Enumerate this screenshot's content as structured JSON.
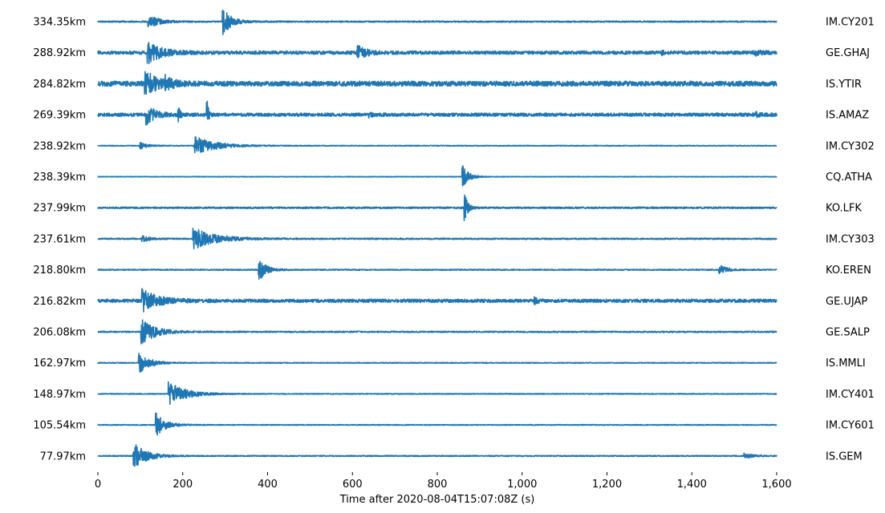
{
  "chart_data": {
    "type": "line",
    "title": "",
    "xlabel": "Time after 2020-08-04T15:07:08Z (s)",
    "ylabel": "",
    "xlim": [
      0,
      1600
    ],
    "x_ticks": [
      0,
      200,
      400,
      600,
      800,
      1000,
      1200,
      1400,
      1600
    ],
    "x_tick_labels": [
      "0",
      "200",
      "400",
      "600",
      "800",
      "1,000",
      "1,200",
      "1,400",
      "1,600"
    ],
    "grid": false,
    "line_color": "#1f77b4",
    "traces": [
      {
        "station": "IM.CY201",
        "distance": "334.35km",
        "noise": 0.05,
        "events": [
          {
            "t": 120,
            "amp": 0.55,
            "dur": 60
          },
          {
            "t": 295,
            "amp": 0.95,
            "dur": 55
          }
        ]
      },
      {
        "station": "GE.GHAJ",
        "distance": "288.92km",
        "noise": 0.12,
        "events": [
          {
            "t": 118,
            "amp": 0.75,
            "dur": 90
          },
          {
            "t": 612,
            "amp": 0.45,
            "dur": 60
          },
          {
            "t": 1330,
            "amp": 0.3,
            "dur": 6
          },
          {
            "t": 1545,
            "amp": 0.2,
            "dur": 50
          }
        ]
      },
      {
        "station": "IS.YTIR",
        "distance": "284.82km",
        "noise": 0.18,
        "events": [
          {
            "t": 112,
            "amp": 0.9,
            "dur": 80
          },
          {
            "t": 160,
            "amp": 0.35,
            "dur": 40
          }
        ]
      },
      {
        "station": "IS.AMAZ",
        "distance": "269.39km",
        "noise": 0.12,
        "events": [
          {
            "t": 115,
            "amp": 0.65,
            "dur": 60
          },
          {
            "t": 190,
            "amp": 0.6,
            "dur": 10
          },
          {
            "t": 258,
            "amp": 0.9,
            "dur": 10
          },
          {
            "t": 640,
            "amp": 0.15,
            "dur": 30
          },
          {
            "t": 1545,
            "amp": 0.2,
            "dur": 40
          }
        ]
      },
      {
        "station": "IM.CY302",
        "distance": "238.92km",
        "noise": 0.03,
        "events": [
          {
            "t": 100,
            "amp": 0.25,
            "dur": 40
          },
          {
            "t": 228,
            "amp": 0.7,
            "dur": 130
          }
        ]
      },
      {
        "station": "CQ.ATHA",
        "distance": "238.39km",
        "noise": 0.02,
        "events": [
          {
            "t": 860,
            "amp": 0.9,
            "dur": 40
          }
        ]
      },
      {
        "station": "KO.LFK",
        "distance": "237.99km",
        "noise": 0.06,
        "events": [
          {
            "t": 865,
            "amp": 1.0,
            "dur": 20
          }
        ]
      },
      {
        "station": "IM.CY303",
        "distance": "237.61km",
        "noise": 0.05,
        "events": [
          {
            "t": 105,
            "amp": 0.25,
            "dur": 40
          },
          {
            "t": 225,
            "amp": 0.8,
            "dur": 140
          }
        ]
      },
      {
        "station": "KO.EREN",
        "distance": "218.80km",
        "noise": 0.04,
        "events": [
          {
            "t": 380,
            "amp": 0.8,
            "dur": 50
          },
          {
            "t": 1465,
            "amp": 0.35,
            "dur": 50
          }
        ]
      },
      {
        "station": "GE.UJAP",
        "distance": "216.82km",
        "noise": 0.12,
        "events": [
          {
            "t": 105,
            "amp": 0.8,
            "dur": 100
          },
          {
            "t": 1030,
            "amp": 0.2,
            "dur": 20
          }
        ]
      },
      {
        "station": "GE.SALP",
        "distance": "206.08km",
        "noise": 0.05,
        "events": [
          {
            "t": 103,
            "amp": 0.9,
            "dur": 90
          }
        ]
      },
      {
        "station": "IS.MMLI",
        "distance": "162.97km",
        "noise": 0.03,
        "events": [
          {
            "t": 97,
            "amp": 0.8,
            "dur": 70
          }
        ]
      },
      {
        "station": "IM.CY401",
        "distance": "148.97km",
        "noise": 0.03,
        "events": [
          {
            "t": 168,
            "amp": 0.85,
            "dur": 110
          }
        ]
      },
      {
        "station": "IM.CY601",
        "distance": "105.54km",
        "noise": 0.03,
        "events": [
          {
            "t": 138,
            "amp": 0.85,
            "dur": 60
          }
        ]
      },
      {
        "station": "IS.GEM",
        "distance": "77.97km",
        "noise": 0.04,
        "events": [
          {
            "t": 85,
            "amp": 0.95,
            "dur": 80
          },
          {
            "t": 1525,
            "amp": 0.2,
            "dur": 50
          }
        ]
      }
    ]
  }
}
